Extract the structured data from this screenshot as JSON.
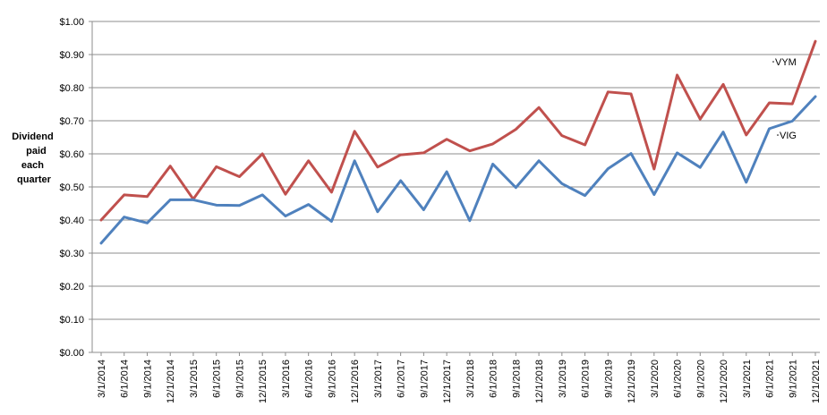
{
  "chart_data": {
    "type": "line",
    "ylabel": [
      "Dividend",
      "paid",
      "each",
      "quarter"
    ],
    "ylim": [
      0,
      1.0
    ],
    "y_ticks": [
      "$0.00",
      "$0.10",
      "$0.20",
      "$0.30",
      "$0.40",
      "$0.50",
      "$0.60",
      "$0.70",
      "$0.80",
      "$0.90",
      "$1.00"
    ],
    "grid": true,
    "categories": [
      "3/1/2014",
      "6/1/2014",
      "9/1/2014",
      "12/1/2014",
      "3/1/2015",
      "6/1/2015",
      "9/1/2015",
      "12/1/2015",
      "3/1/2016",
      "6/1/2016",
      "9/1/2016",
      "12/1/2016",
      "3/1/2017",
      "6/1/2017",
      "9/1/2017",
      "12/1/2017",
      "3/1/2018",
      "6/1/2018",
      "9/1/2018",
      "12/1/2018",
      "3/1/2019",
      "6/1/2019",
      "9/1/2019",
      "12/1/2019",
      "3/1/2020",
      "6/1/2020",
      "9/1/2020",
      "12/1/2020",
      "3/1/2021",
      "6/1/2021",
      "9/1/2021",
      "12/1/2021"
    ],
    "series": [
      {
        "name": "VYM",
        "color": "#c0504d",
        "values": [
          0.4,
          0.476,
          0.471,
          0.563,
          0.463,
          0.561,
          0.531,
          0.6,
          0.478,
          0.579,
          0.484,
          0.668,
          0.56,
          0.597,
          0.603,
          0.644,
          0.609,
          0.63,
          0.674,
          0.74,
          0.655,
          0.627,
          0.787,
          0.781,
          0.554,
          0.838,
          0.705,
          0.81,
          0.657,
          0.754,
          0.751,
          0.94
        ]
      },
      {
        "name": "VIG",
        "color": "#4f81bd",
        "values": [
          0.33,
          0.409,
          0.391,
          0.461,
          0.461,
          0.445,
          0.444,
          0.476,
          0.412,
          0.447,
          0.396,
          0.579,
          0.425,
          0.519,
          0.431,
          0.546,
          0.398,
          0.569,
          0.498,
          0.579,
          0.51,
          0.474,
          0.555,
          0.601,
          0.477,
          0.603,
          0.559,
          0.666,
          0.514,
          0.676,
          0.699,
          0.773
        ]
      }
    ]
  }
}
